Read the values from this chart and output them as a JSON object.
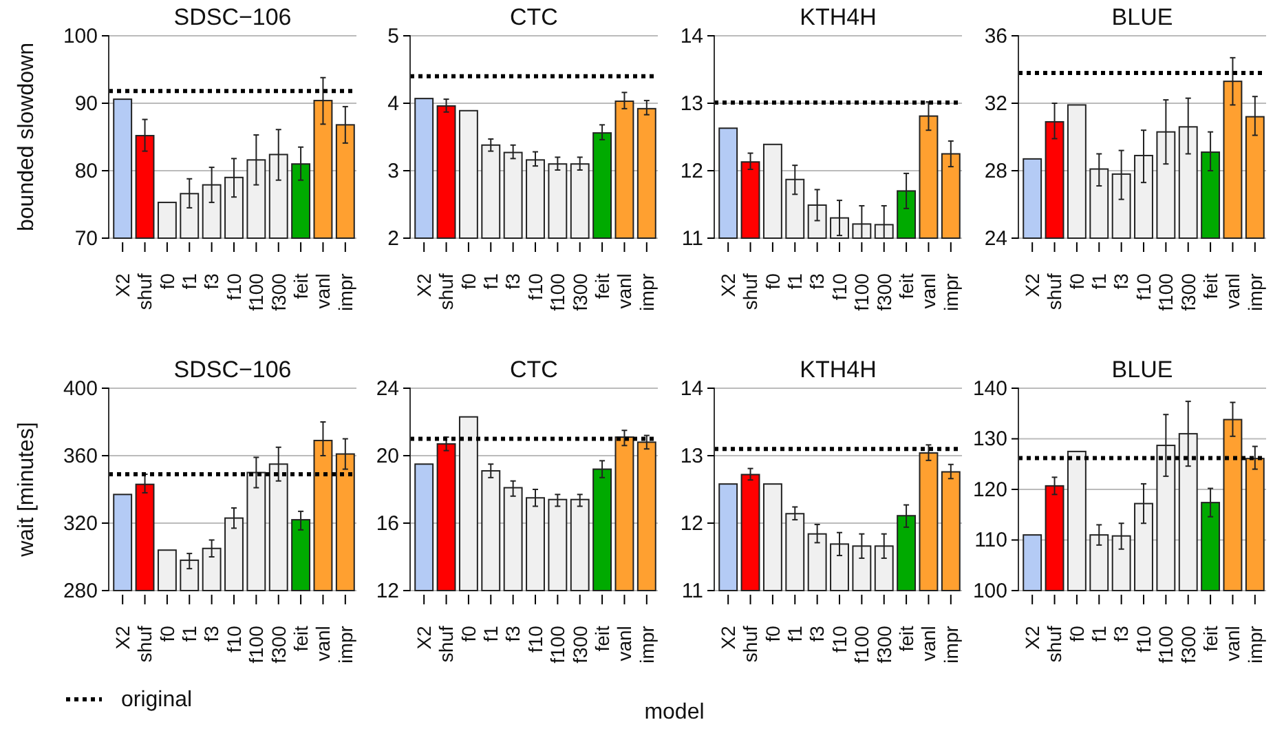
{
  "chart_data": [
    {
      "type": "bar",
      "title": "SDSC−106",
      "ylabel": "bounded slowdown",
      "categories": [
        "X2",
        "shuf",
        "f0",
        "f1",
        "f3",
        "f10",
        "f100",
        "f300",
        "feit",
        "vanl",
        "impr"
      ],
      "values": [
        90.6,
        85.2,
        75.3,
        76.6,
        77.9,
        79.0,
        81.6,
        82.4,
        81.0,
        90.4,
        86.8
      ],
      "errors": [
        null,
        [
          82.9,
          87.6
        ],
        null,
        [
          74.5,
          78.8
        ],
        [
          75.3,
          80.5
        ],
        [
          76.1,
          81.8
        ],
        [
          77.9,
          85.3
        ],
        [
          78.6,
          86.1
        ],
        [
          78.6,
          83.5
        ],
        [
          86.9,
          93.8
        ],
        [
          84.1,
          89.5
        ]
      ],
      "colors": [
        "#b4cbf5",
        "#ff0000",
        "#f0f0f0",
        "#f0f0f0",
        "#f0f0f0",
        "#f0f0f0",
        "#f0f0f0",
        "#f0f0f0",
        "#00aa00",
        "#ffa030",
        "#ffa030"
      ],
      "ylim": [
        70,
        100
      ],
      "yticks": [
        70,
        80,
        90,
        100
      ],
      "grid": "y",
      "ref_lines": [
        {
          "axis": "y",
          "value": 91.8,
          "line_style": "dotted"
        }
      ]
    },
    {
      "type": "bar",
      "title": "CTC",
      "categories": [
        "X2",
        "shuf",
        "f0",
        "f1",
        "f3",
        "f10",
        "f100",
        "f300",
        "feit",
        "vanl",
        "impr"
      ],
      "values": [
        4.07,
        3.96,
        3.89,
        3.38,
        3.27,
        3.16,
        3.1,
        3.1,
        3.56,
        4.03,
        3.92
      ],
      "errors": [
        null,
        [
          3.87,
          4.06
        ],
        null,
        [
          3.29,
          3.47
        ],
        [
          3.18,
          3.38
        ],
        [
          3.07,
          3.28
        ],
        [
          3.01,
          3.2
        ],
        [
          3.01,
          3.2
        ],
        [
          3.46,
          3.68
        ],
        [
          3.92,
          4.16
        ],
        [
          3.83,
          4.04
        ]
      ],
      "colors": [
        "#b4cbf5",
        "#ff0000",
        "#f0f0f0",
        "#f0f0f0",
        "#f0f0f0",
        "#f0f0f0",
        "#f0f0f0",
        "#f0f0f0",
        "#00aa00",
        "#ffa030",
        "#ffa030"
      ],
      "ylim": [
        2,
        5
      ],
      "yticks": [
        2,
        3,
        4,
        5
      ],
      "grid": "y",
      "ref_lines": [
        {
          "axis": "y",
          "value": 4.4,
          "line_style": "dotted"
        }
      ]
    },
    {
      "type": "bar",
      "title": "KTH4H",
      "categories": [
        "X2",
        "shuf",
        "f0",
        "f1",
        "f3",
        "f10",
        "f100",
        "f300",
        "feit",
        "vanl",
        "impr"
      ],
      "values": [
        12.63,
        12.13,
        12.39,
        11.87,
        11.49,
        11.3,
        11.21,
        11.2,
        11.7,
        12.81,
        12.25
      ],
      "errors": [
        null,
        [
          12.02,
          12.26
        ],
        null,
        [
          11.65,
          12.08
        ],
        [
          11.26,
          11.72
        ],
        [
          11.04,
          11.56
        ],
        [
          11.0,
          11.48
        ],
        [
          11.0,
          11.48
        ],
        [
          11.44,
          11.96
        ],
        [
          12.6,
          13.02
        ],
        [
          12.06,
          12.44
        ]
      ],
      "colors": [
        "#b4cbf5",
        "#ff0000",
        "#f0f0f0",
        "#f0f0f0",
        "#f0f0f0",
        "#f0f0f0",
        "#f0f0f0",
        "#f0f0f0",
        "#00aa00",
        "#ffa030",
        "#ffa030"
      ],
      "ylim": [
        11,
        14
      ],
      "yticks": [
        11,
        12,
        13,
        14
      ],
      "grid": "y",
      "ref_lines": [
        {
          "axis": "y",
          "value": 13.01,
          "line_style": "dotted"
        }
      ]
    },
    {
      "type": "bar",
      "title": "BLUE",
      "categories": [
        "X2",
        "shuf",
        "f0",
        "f1",
        "f3",
        "f10",
        "f100",
        "f300",
        "feit",
        "vanl",
        "impr"
      ],
      "values": [
        28.7,
        30.9,
        31.9,
        28.1,
        27.8,
        28.9,
        30.3,
        30.6,
        29.1,
        33.3,
        31.2
      ],
      "errors": [
        null,
        [
          29.9,
          32.0
        ],
        null,
        [
          27.1,
          29.0
        ],
        [
          26.3,
          29.2
        ],
        [
          27.3,
          30.4
        ],
        [
          28.4,
          32.2
        ],
        [
          29.0,
          32.3
        ],
        [
          28.0,
          30.3
        ],
        [
          31.9,
          34.7
        ],
        [
          30.1,
          32.4
        ]
      ],
      "colors": [
        "#b4cbf5",
        "#ff0000",
        "#f0f0f0",
        "#f0f0f0",
        "#f0f0f0",
        "#f0f0f0",
        "#f0f0f0",
        "#f0f0f0",
        "#00aa00",
        "#ffa030",
        "#ffa030"
      ],
      "ylim": [
        24,
        36
      ],
      "yticks": [
        24,
        28,
        32,
        36
      ],
      "grid": "y",
      "ref_lines": [
        {
          "axis": "y",
          "value": 33.8,
          "line_style": "dotted"
        }
      ]
    },
    {
      "type": "bar",
      "title": "SDSC−106",
      "ylabel": "wait [minutes]",
      "legend": "bottom",
      "categories": [
        "X2",
        "shuf",
        "f0",
        "f1",
        "f3",
        "f10",
        "f100",
        "f300",
        "feit",
        "vanl",
        "impr"
      ],
      "values": [
        337,
        343,
        304,
        298,
        305,
        323,
        350,
        355,
        322,
        369,
        361
      ],
      "errors": [
        null,
        [
          338,
          349
        ],
        null,
        [
          293,
          302
        ],
        [
          300,
          310
        ],
        [
          317,
          329
        ],
        [
          341,
          359
        ],
        [
          345,
          365
        ],
        [
          316,
          327
        ],
        [
          360,
          380
        ],
        [
          352,
          370
        ]
      ],
      "colors": [
        "#b4cbf5",
        "#ff0000",
        "#f0f0f0",
        "#f0f0f0",
        "#f0f0f0",
        "#f0f0f0",
        "#f0f0f0",
        "#f0f0f0",
        "#00aa00",
        "#ffa030",
        "#ffa030"
      ],
      "ylim": [
        280,
        400
      ],
      "yticks": [
        280,
        320,
        360,
        400
      ],
      "grid": "y",
      "ref_lines": [
        {
          "axis": "y",
          "value": 349,
          "label": "original",
          "line_style": "dotted"
        }
      ]
    },
    {
      "type": "bar",
      "title": "CTC",
      "xlabel": "model",
      "categories": [
        "X2",
        "shuf",
        "f0",
        "f1",
        "f3",
        "f10",
        "f100",
        "f300",
        "feit",
        "vanl",
        "impr"
      ],
      "values": [
        19.5,
        20.7,
        22.3,
        19.1,
        18.1,
        17.5,
        17.4,
        17.4,
        19.2,
        21.1,
        20.8
      ],
      "errors": [
        null,
        [
          20.3,
          21.1
        ],
        null,
        [
          18.7,
          19.5
        ],
        [
          17.6,
          18.5
        ],
        [
          17.0,
          18.0
        ],
        [
          17.0,
          17.7
        ],
        [
          17.0,
          17.7
        ],
        [
          18.7,
          19.7
        ],
        [
          20.6,
          21.5
        ],
        [
          20.4,
          21.2
        ]
      ],
      "colors": [
        "#b4cbf5",
        "#ff0000",
        "#f0f0f0",
        "#f0f0f0",
        "#f0f0f0",
        "#f0f0f0",
        "#f0f0f0",
        "#f0f0f0",
        "#00aa00",
        "#ffa030",
        "#ffa030"
      ],
      "ylim": [
        12,
        24
      ],
      "yticks": [
        12,
        16,
        20,
        24
      ],
      "grid": "y",
      "ref_lines": [
        {
          "axis": "y",
          "value": 21.0,
          "line_style": "dotted"
        }
      ]
    },
    {
      "type": "bar",
      "title": "KTH4H",
      "categories": [
        "X2",
        "shuf",
        "f0",
        "f1",
        "f3",
        "f10",
        "f100",
        "f300",
        "feit",
        "vanl",
        "impr"
      ],
      "values": [
        12.58,
        12.72,
        12.58,
        12.14,
        11.84,
        11.69,
        11.66,
        11.66,
        12.11,
        13.04,
        12.76
      ],
      "errors": [
        null,
        [
          12.64,
          12.81
        ],
        null,
        [
          12.05,
          12.24
        ],
        [
          11.71,
          11.98
        ],
        [
          11.52,
          11.86
        ],
        [
          11.48,
          11.84
        ],
        [
          11.48,
          11.84
        ],
        [
          11.94,
          12.27
        ],
        [
          12.93,
          13.16
        ],
        [
          12.66,
          12.87
        ]
      ],
      "colors": [
        "#b4cbf5",
        "#ff0000",
        "#f0f0f0",
        "#f0f0f0",
        "#f0f0f0",
        "#f0f0f0",
        "#f0f0f0",
        "#f0f0f0",
        "#00aa00",
        "#ffa030",
        "#ffa030"
      ],
      "ylim": [
        11,
        14
      ],
      "yticks": [
        11,
        12,
        13,
        14
      ],
      "grid": "y",
      "ref_lines": [
        {
          "axis": "y",
          "value": 13.1,
          "line_style": "dotted"
        }
      ]
    },
    {
      "type": "bar",
      "title": "BLUE",
      "categories": [
        "X2",
        "shuf",
        "f0",
        "f1",
        "f3",
        "f10",
        "f100",
        "f300",
        "feit",
        "vanl",
        "impr"
      ],
      "values": [
        111.0,
        120.7,
        127.5,
        111.0,
        110.8,
        117.2,
        128.7,
        131.0,
        117.4,
        133.8,
        126.1
      ],
      "errors": [
        null,
        [
          119.0,
          122.4
        ],
        null,
        [
          109.0,
          113.0
        ],
        [
          108.2,
          113.3
        ],
        [
          113.3,
          121.1
        ],
        [
          122.6,
          134.8
        ],
        [
          124.6,
          137.4
        ],
        [
          114.6,
          120.2
        ],
        [
          130.5,
          137.2
        ],
        [
          124.0,
          128.5
        ]
      ],
      "colors": [
        "#b4cbf5",
        "#ff0000",
        "#f0f0f0",
        "#f0f0f0",
        "#f0f0f0",
        "#f0f0f0",
        "#f0f0f0",
        "#f0f0f0",
        "#00aa00",
        "#ffa030",
        "#ffa030"
      ],
      "ylim": [
        100,
        140
      ],
      "yticks": [
        100,
        110,
        120,
        130,
        140
      ],
      "grid": "y",
      "ref_lines": [
        {
          "axis": "y",
          "value": 126.2,
          "line_style": "dotted"
        }
      ]
    }
  ]
}
